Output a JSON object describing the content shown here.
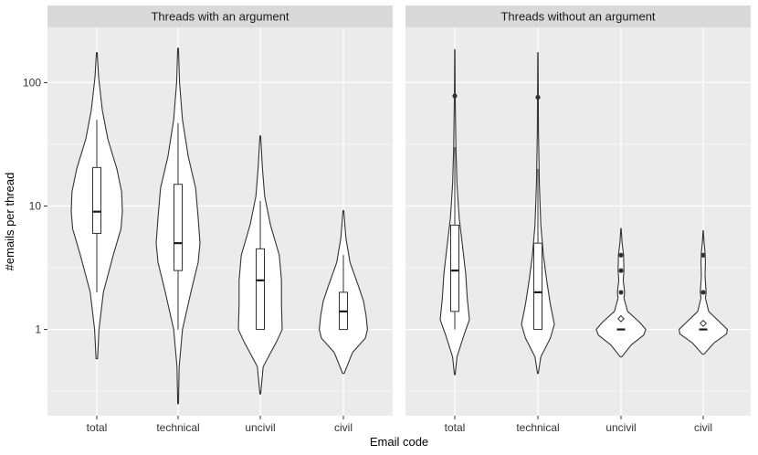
{
  "chart_data": {
    "type": "violin",
    "xlabel": "Email code",
    "ylabel": "#emails per thread",
    "y_scale": "log10",
    "ylim": [
      0.2,
      280
    ],
    "y_ticks": [
      {
        "value": 1,
        "label": "1"
      },
      {
        "value": 10,
        "label": "10"
      },
      {
        "value": 100,
        "label": "100"
      }
    ],
    "categories": [
      "total",
      "technical",
      "uncivil",
      "civil"
    ],
    "grid": true,
    "colors": {
      "panel_bg": "#ebebeb",
      "strip_bg": "#d9d9d9",
      "grid": "#ffffff",
      "violin_fill": "#ffffff",
      "violin_stroke": "#333333"
    },
    "panels": [
      {
        "title": "Threads with an argument",
        "groups": [
          {
            "category": "total",
            "min": 0.58,
            "max": 175,
            "q1": 6,
            "median": 9,
            "q3": 20.5,
            "whisker_low": 2,
            "whisker_high": 50,
            "mean": null,
            "outliers": [],
            "density": [
              [
                0.58,
                0.02
              ],
              [
                1.0,
                0.06
              ],
              [
                2.0,
                0.18
              ],
              [
                4.0,
                0.45
              ],
              [
                6.5,
                0.66
              ],
              [
                9.0,
                0.7
              ],
              [
                13.0,
                0.68
              ],
              [
                20.0,
                0.55
              ],
              [
                35.0,
                0.3
              ],
              [
                60.0,
                0.15
              ],
              [
                110.0,
                0.05
              ],
              [
                175,
                0.01
              ]
            ]
          },
          {
            "category": "technical",
            "min": 0.25,
            "max": 190,
            "q1": 3,
            "median": 5,
            "q3": 15,
            "whisker_low": 1,
            "whisker_high": 47,
            "mean": null,
            "outliers": [],
            "density": [
              [
                0.25,
                0.01
              ],
              [
                0.5,
                0.03
              ],
              [
                1.0,
                0.12
              ],
              [
                2.0,
                0.35
              ],
              [
                3.5,
                0.55
              ],
              [
                5.0,
                0.6
              ],
              [
                8.0,
                0.55
              ],
              [
                14.0,
                0.48
              ],
              [
                25.0,
                0.28
              ],
              [
                50.0,
                0.12
              ],
              [
                100.0,
                0.04
              ],
              [
                190,
                0.01
              ]
            ]
          },
          {
            "category": "uncivil",
            "min": 0.3,
            "max": 37,
            "q1": 1,
            "median": 2.5,
            "q3": 4.5,
            "whisker_low": 1,
            "whisker_high": 11,
            "mean": null,
            "outliers": [],
            "density": [
              [
                0.3,
                0.01
              ],
              [
                0.5,
                0.08
              ],
              [
                0.8,
                0.45
              ],
              [
                1.0,
                0.6
              ],
              [
                1.6,
                0.58
              ],
              [
                2.5,
                0.58
              ],
              [
                4.0,
                0.52
              ],
              [
                7.0,
                0.28
              ],
              [
                12.0,
                0.12
              ],
              [
                20.0,
                0.06
              ],
              [
                37,
                0.01
              ]
            ]
          },
          {
            "category": "civil",
            "min": 0.44,
            "max": 9.2,
            "q1": 1,
            "median": 1.4,
            "q3": 2,
            "whisker_low": 1,
            "whisker_high": 4,
            "mean": null,
            "outliers": [],
            "density": [
              [
                0.44,
                0.02
              ],
              [
                0.65,
                0.25
              ],
              [
                0.85,
                0.6
              ],
              [
                1.0,
                0.66
              ],
              [
                1.3,
                0.62
              ],
              [
                1.7,
                0.55
              ],
              [
                2.3,
                0.4
              ],
              [
                3.5,
                0.18
              ],
              [
                5.5,
                0.07
              ],
              [
                9.2,
                0.01
              ]
            ]
          }
        ]
      },
      {
        "title": "Threads without an argument",
        "groups": [
          {
            "category": "total",
            "min": 0.43,
            "max": 185,
            "q1": 1.4,
            "median": 3,
            "q3": 7,
            "whisker_low": 1,
            "whisker_high": 30,
            "mean": null,
            "outliers": [
              78
            ],
            "density": [
              [
                0.43,
                0.01
              ],
              [
                0.6,
                0.06
              ],
              [
                0.9,
                0.25
              ],
              [
                1.2,
                0.4
              ],
              [
                1.8,
                0.34
              ],
              [
                2.8,
                0.3
              ],
              [
                4.5,
                0.22
              ],
              [
                8.0,
                0.12
              ],
              [
                15.0,
                0.06
              ],
              [
                30.0,
                0.03
              ],
              [
                80.0,
                0.01
              ],
              [
                185,
                0.004
              ]
            ]
          },
          {
            "category": "technical",
            "min": 0.44,
            "max": 175,
            "q1": 1,
            "median": 2,
            "q3": 5,
            "whisker_low": 1,
            "whisker_high": 20,
            "mean": null,
            "outliers": [
              76
            ],
            "density": [
              [
                0.44,
                0.01
              ],
              [
                0.6,
                0.08
              ],
              [
                0.85,
                0.34
              ],
              [
                1.1,
                0.45
              ],
              [
                1.6,
                0.34
              ],
              [
                2.5,
                0.24
              ],
              [
                4.0,
                0.15
              ],
              [
                7.0,
                0.08
              ],
              [
                15.0,
                0.04
              ],
              [
                40.0,
                0.015
              ],
              [
                175,
                0.004
              ]
            ]
          },
          {
            "category": "uncivil",
            "min": 0.6,
            "max": 6.6,
            "q1": 1,
            "median": 1,
            "q3": 1,
            "whisker_low": 1,
            "whisker_high": 1,
            "mean": 1.22,
            "outliers": [
              2,
              3,
              4
            ],
            "density": [
              [
                0.6,
                0.02
              ],
              [
                0.75,
                0.28
              ],
              [
                0.9,
                0.62
              ],
              [
                1.0,
                0.68
              ],
              [
                1.15,
                0.5
              ],
              [
                1.4,
                0.18
              ],
              [
                1.8,
                0.08
              ],
              [
                2.0,
                0.1
              ],
              [
                2.5,
                0.06
              ],
              [
                3.0,
                0.08
              ],
              [
                4.0,
                0.07
              ],
              [
                5.0,
                0.03
              ],
              [
                6.6,
                0.004
              ]
            ]
          },
          {
            "category": "civil",
            "min": 0.63,
            "max": 6.3,
            "q1": 1,
            "median": 1,
            "q3": 1,
            "whisker_low": 1,
            "whisker_high": 1,
            "mean": 1.12,
            "outliers": [
              2,
              4
            ],
            "density": [
              [
                0.63,
                0.02
              ],
              [
                0.78,
                0.3
              ],
              [
                0.92,
                0.64
              ],
              [
                1.0,
                0.66
              ],
              [
                1.15,
                0.45
              ],
              [
                1.4,
                0.15
              ],
              [
                1.8,
                0.06
              ],
              [
                2.0,
                0.08
              ],
              [
                2.7,
                0.05
              ],
              [
                3.5,
                0.06
              ],
              [
                4.2,
                0.05
              ],
              [
                5.2,
                0.02
              ],
              [
                6.3,
                0.004
              ]
            ]
          }
        ]
      }
    ]
  }
}
